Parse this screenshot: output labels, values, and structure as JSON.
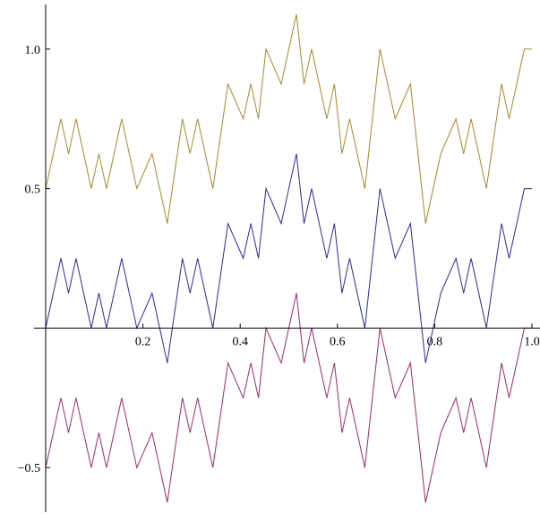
{
  "chart_data": {
    "type": "line",
    "title": "",
    "xlabel": "",
    "ylabel": "",
    "xlim": [
      0,
      1
    ],
    "ylim": [
      -0.66,
      1.16
    ],
    "grid": false,
    "legend": "none",
    "x_ticks": [
      {
        "value": 0.2,
        "label": "0.2"
      },
      {
        "value": 0.4,
        "label": "0.4"
      },
      {
        "value": 0.6,
        "label": "0.6"
      },
      {
        "value": 0.8,
        "label": "0.8"
      },
      {
        "value": 1.0,
        "label": "1.0"
      }
    ],
    "y_ticks": [
      {
        "value": -0.5,
        "label": "−0.5"
      },
      {
        "value": 0.5,
        "label": "0.5"
      },
      {
        "value": 1.0,
        "label": "1.0"
      }
    ],
    "series": [
      {
        "color": "#a08a2e",
        "x": [
          0,
          0.0313,
          0.0469,
          0.0625,
          0.0938,
          0.1094,
          0.125,
          0.1563,
          0.1875,
          0.2188,
          0.25,
          0.2813,
          0.2969,
          0.3125,
          0.3438,
          0.375,
          0.4063,
          0.4219,
          0.4375,
          0.4531,
          0.4844,
          0.5156,
          0.5313,
          0.5469,
          0.5781,
          0.5938,
          0.6094,
          0.625,
          0.6563,
          0.6875,
          0.7188,
          0.75,
          0.7813,
          0.8125,
          0.8438,
          0.8594,
          0.875,
          0.9063,
          0.9375,
          0.9531,
          0.9844,
          1.0
        ],
        "y": [
          0.5,
          0.75,
          0.625,
          0.75,
          0.5,
          0.625,
          0.5,
          0.75,
          0.5,
          0.625,
          0.375,
          0.75,
          0.625,
          0.75,
          0.5,
          0.875,
          0.75,
          0.875,
          0.75,
          1.0,
          0.875,
          1.125,
          0.875,
          1.0,
          0.75,
          0.875,
          0.625,
          0.75,
          0.5,
          1.0,
          0.75,
          0.875,
          0.375,
          0.625,
          0.75,
          0.625,
          0.75,
          0.5,
          0.875,
          0.75,
          1.0,
          1.0
        ]
      },
      {
        "color": "#2b2b9c",
        "x": [
          0,
          0.0313,
          0.0469,
          0.0625,
          0.0938,
          0.1094,
          0.125,
          0.1563,
          0.1875,
          0.2188,
          0.25,
          0.2813,
          0.2969,
          0.3125,
          0.3438,
          0.375,
          0.4063,
          0.4219,
          0.4375,
          0.4531,
          0.4844,
          0.5156,
          0.5313,
          0.5469,
          0.5781,
          0.5938,
          0.6094,
          0.625,
          0.6563,
          0.6875,
          0.7188,
          0.75,
          0.7813,
          0.8125,
          0.8438,
          0.8594,
          0.875,
          0.9063,
          0.9375,
          0.9531,
          0.9844,
          1.0
        ],
        "y": [
          0.0,
          0.25,
          0.125,
          0.25,
          0.0,
          0.125,
          0.0,
          0.25,
          0.0,
          0.125,
          -0.125,
          0.25,
          0.125,
          0.25,
          0.0,
          0.375,
          0.25,
          0.375,
          0.25,
          0.5,
          0.375,
          0.625,
          0.375,
          0.5,
          0.25,
          0.375,
          0.125,
          0.25,
          0.0,
          0.5,
          0.25,
          0.375,
          -0.125,
          0.125,
          0.25,
          0.125,
          0.25,
          0.0,
          0.375,
          0.25,
          0.5,
          0.5
        ]
      },
      {
        "color": "#9a2a66",
        "x": [
          0,
          0.0313,
          0.0469,
          0.0625,
          0.0938,
          0.1094,
          0.125,
          0.1563,
          0.1875,
          0.2188,
          0.25,
          0.2813,
          0.2969,
          0.3125,
          0.3438,
          0.375,
          0.4063,
          0.4219,
          0.4375,
          0.4531,
          0.4844,
          0.5156,
          0.5313,
          0.5469,
          0.5781,
          0.5938,
          0.6094,
          0.625,
          0.6563,
          0.6875,
          0.7188,
          0.75,
          0.7813,
          0.8125,
          0.8438,
          0.8594,
          0.875,
          0.9063,
          0.9375,
          0.9531,
          0.9844,
          1.0
        ],
        "y": [
          -0.5,
          -0.25,
          -0.375,
          -0.25,
          -0.5,
          -0.375,
          -0.5,
          -0.25,
          -0.5,
          -0.375,
          -0.625,
          -0.25,
          -0.375,
          -0.25,
          -0.5,
          -0.125,
          -0.25,
          -0.125,
          -0.25,
          0.0,
          -0.125,
          0.125,
          -0.125,
          0.0,
          -0.25,
          -0.125,
          -0.375,
          -0.25,
          -0.5,
          0.0,
          -0.25,
          -0.125,
          -0.625,
          -0.375,
          -0.25,
          -0.375,
          -0.25,
          -0.5,
          -0.125,
          -0.25,
          0.0,
          0.0
        ]
      }
    ]
  }
}
